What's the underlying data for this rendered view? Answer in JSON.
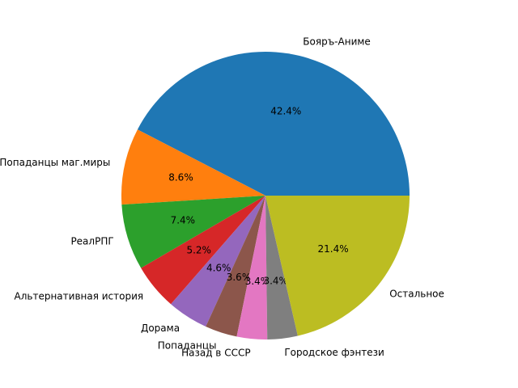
{
  "chart_data": {
    "type": "pie",
    "title": "",
    "slices": [
      {
        "label": "Бояръ-Аниме",
        "value": 42.4,
        "pct_label": "42.4%",
        "color": "#1f77b4"
      },
      {
        "label": "Попаданцы маг.миры",
        "value": 8.6,
        "pct_label": "8.6%",
        "color": "#ff7f0e"
      },
      {
        "label": "РеалРПГ",
        "value": 7.4,
        "pct_label": "7.4%",
        "color": "#2ca02c"
      },
      {
        "label": "Альтернативная история",
        "value": 5.2,
        "pct_label": "5.2%",
        "color": "#d62728"
      },
      {
        "label": "Дорама",
        "value": 4.6,
        "pct_label": "4.6%",
        "color": "#9467bd"
      },
      {
        "label": "Попаданцы",
        "value": 3.6,
        "pct_label": "3.6%",
        "color": "#8c564b"
      },
      {
        "label": "Назад в СССР",
        "value": 3.4,
        "pct_label": "3.4%",
        "color": "#e377c2"
      },
      {
        "label": "Городское фэнтези",
        "value": 3.4,
        "pct_label": "3.4%",
        "color": "#7f7f7f"
      },
      {
        "label": "Остальное",
        "value": 21.4,
        "pct_label": "21.4%",
        "color": "#bcbd22"
      }
    ],
    "start_angle_deg": 0,
    "direction": "counterclockwise"
  }
}
